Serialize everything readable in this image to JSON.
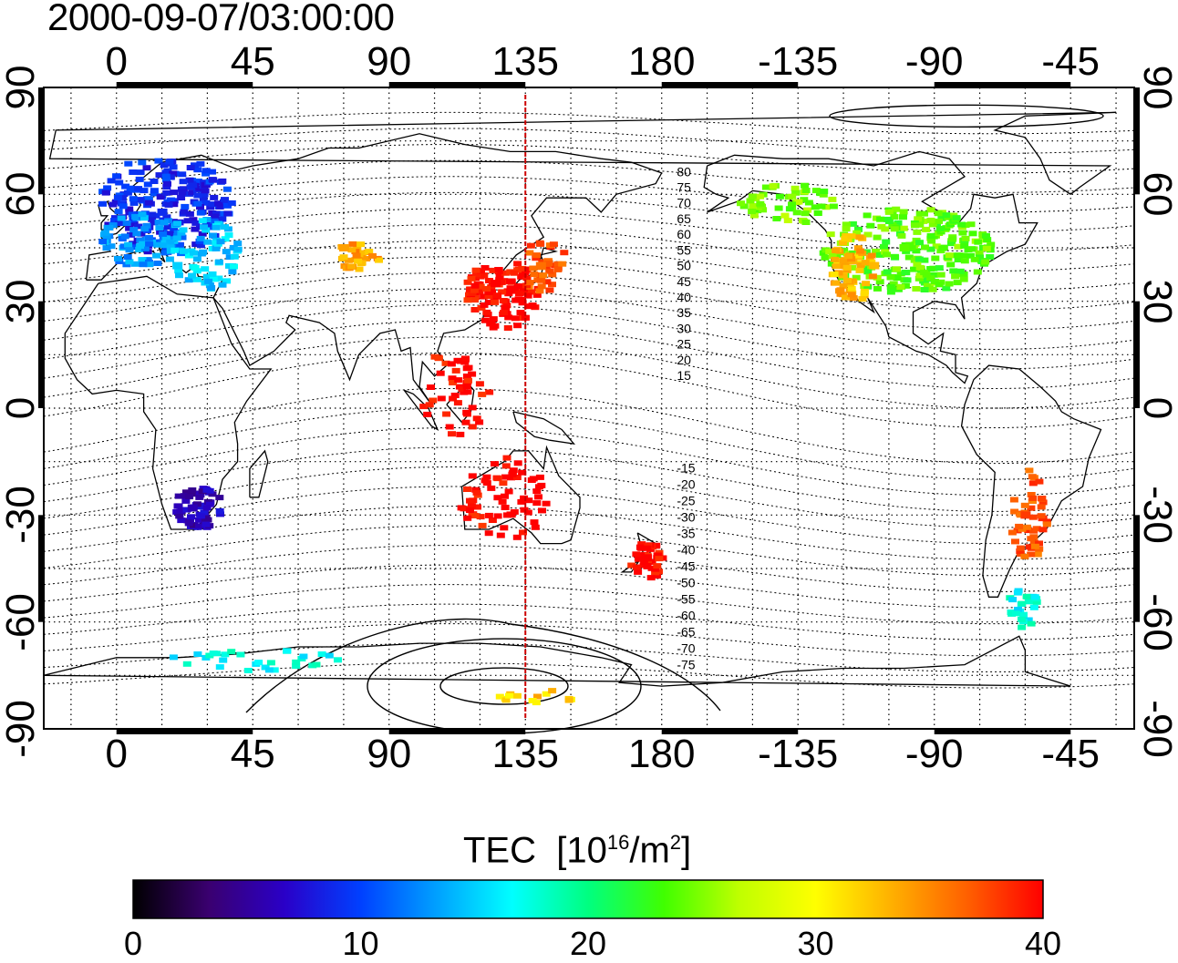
{
  "timestamp": "2000-09-07/03:00:00",
  "map": {
    "projection": "cylindrical equidistant",
    "lon_range": [
      -24,
      336
    ],
    "lat_range": [
      -90,
      90
    ],
    "x_ticks_top": [
      "0",
      "45",
      "90",
      "135",
      "180",
      "-135",
      "-90",
      "-45"
    ],
    "x_ticks_bottom": [
      "0",
      "45",
      "90",
      "135",
      "180",
      "-135",
      "-90",
      "-45"
    ],
    "y_ticks_left": [
      "90",
      "60",
      "30",
      "0",
      "-30",
      "-60",
      "-90"
    ],
    "y_ticks_right": [
      "90",
      "60",
      "30",
      "0",
      "-30",
      "-60",
      "-90"
    ],
    "highlight_meridian_lon": 135,
    "highlight_color": "#cc0000",
    "graticule": "dotted, every 15 deg"
  },
  "contour_labels": [
    "80",
    "75",
    "70",
    "65",
    "60",
    "55",
    "50",
    "45",
    "40",
    "35",
    "30",
    "25",
    "20",
    "15",
    "-15",
    "-20",
    "-25",
    "-30",
    "-35",
    "-40",
    "-45",
    "-50",
    "-55",
    "-60",
    "-65",
    "-70",
    "-75"
  ],
  "colorbar": {
    "title": "TEC",
    "unit_base": "[10",
    "unit_exp": "16",
    "unit_mid": "/m",
    "unit_exp2": "2",
    "unit_end": "]",
    "min": 0,
    "max": 40,
    "ticks": [
      "0",
      "10",
      "20",
      "30",
      "40"
    ],
    "colormap": [
      "#000000",
      "#3a0070",
      "#2a00c8",
      "#0040ff",
      "#00a0ff",
      "#00ffff",
      "#00ff80",
      "#40ff00",
      "#c0ff00",
      "#ffff00",
      "#ffb000",
      "#ff6000",
      "#ff0000"
    ]
  },
  "chart_data": {
    "type": "heatmap",
    "variable": "TEC",
    "regions": [
      {
        "lon": 15,
        "lat": 55,
        "tec": 9
      },
      {
        "lon": 20,
        "lat": 40,
        "tec": 15
      },
      {
        "lon": 75,
        "lat": 45,
        "tec": 34
      },
      {
        "lon": 125,
        "lat": 35,
        "tec": 40
      },
      {
        "lon": 140,
        "lat": 40,
        "tec": 36
      },
      {
        "lon": -100,
        "lat": 45,
        "tec": 24
      },
      {
        "lon": -110,
        "lat": 40,
        "tec": 33
      },
      {
        "lon": 25,
        "lat": -28,
        "tec": 6
      },
      {
        "lon": 175,
        "lat": -42,
        "tec": 40
      },
      {
        "lon": -60,
        "lat": -30,
        "tec": 38
      }
    ]
  }
}
